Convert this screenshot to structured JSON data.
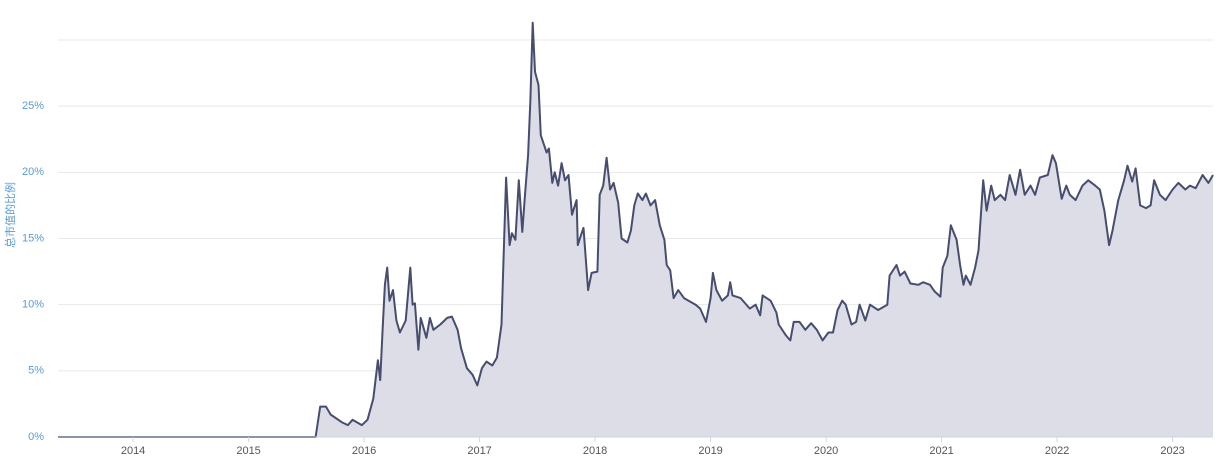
{
  "chart_data": {
    "type": "area",
    "y_label": "总市值的比例",
    "x": [
      2013.35,
      2015.58,
      2015.62,
      2015.67,
      2015.71,
      2015.81,
      2015.86,
      2015.9,
      2015.98,
      2016.03,
      2016.08,
      2016.12,
      2016.14,
      2016.16,
      2016.18,
      2016.2,
      2016.22,
      2016.25,
      2016.28,
      2016.31,
      2016.36,
      2016.4,
      2016.42,
      2016.44,
      2016.47,
      2016.49,
      2016.54,
      2016.57,
      2016.6,
      2016.66,
      2016.72,
      2016.76,
      2016.81,
      2016.84,
      2016.89,
      2016.94,
      2016.98,
      2017.02,
      2017.06,
      2017.11,
      2017.15,
      2017.19,
      2017.21,
      2017.23,
      2017.26,
      2017.28,
      2017.31,
      2017.34,
      2017.37,
      2017.39,
      2017.42,
      2017.44,
      2017.46,
      2017.48,
      2017.51,
      2017.53,
      2017.58,
      2017.6,
      2017.63,
      2017.65,
      2017.68,
      2017.71,
      2017.74,
      2017.77,
      2017.8,
      2017.84,
      2017.85,
      2017.88,
      2017.9,
      2017.94,
      2017.97,
      2018.02,
      2018.04,
      2018.07,
      2018.1,
      2018.13,
      2018.16,
      2018.2,
      2018.23,
      2018.28,
      2018.31,
      2018.34,
      2018.37,
      2018.41,
      2018.44,
      2018.48,
      2018.52,
      2018.56,
      2018.6,
      2018.62,
      2018.65,
      2018.68,
      2018.72,
      2018.77,
      2018.81,
      2018.87,
      2018.91,
      2018.96,
      2019.0,
      2019.02,
      2019.05,
      2019.1,
      2019.15,
      2019.17,
      2019.19,
      2019.26,
      2019.34,
      2019.39,
      2019.43,
      2019.45,
      2019.52,
      2019.57,
      2019.59,
      2019.65,
      2019.69,
      2019.72,
      2019.77,
      2019.82,
      2019.87,
      2019.92,
      2019.97,
      2020.02,
      2020.06,
      2020.1,
      2020.14,
      2020.17,
      2020.22,
      2020.26,
      2020.29,
      2020.34,
      2020.38,
      2020.45,
      2020.53,
      2020.55,
      2020.61,
      2020.64,
      2020.68,
      2020.73,
      2020.8,
      2020.84,
      2020.9,
      2020.94,
      2020.99,
      2021.01,
      2021.05,
      2021.08,
      2021.13,
      2021.16,
      2021.19,
      2021.21,
      2021.25,
      2021.29,
      2021.32,
      2021.36,
      2021.39,
      2021.43,
      2021.46,
      2021.51,
      2021.55,
      2021.59,
      2021.64,
      2021.68,
      2021.72,
      2021.77,
      2021.81,
      2021.85,
      2021.92,
      2021.96,
      2021.99,
      2022.04,
      2022.08,
      2022.11,
      2022.16,
      2022.22,
      2022.27,
      2022.33,
      2022.37,
      2022.41,
      2022.45,
      2022.48,
      2022.53,
      2022.58,
      2022.61,
      2022.65,
      2022.68,
      2022.72,
      2022.77,
      2022.81,
      2022.84,
      2022.89,
      2022.94,
      2023.0,
      2023.05,
      2023.11,
      2023.15,
      2023.2,
      2023.26,
      2023.31,
      2023.35
    ],
    "series": [
      {
        "color": "#474d6e",
        "fill": "#dcdde6",
        "values": [
          0,
          0,
          2.3,
          2.3,
          1.7,
          1.1,
          0.9,
          1.3,
          0.9,
          1.3,
          2.9,
          5.8,
          4.3,
          8.1,
          11.5,
          12.8,
          10.3,
          11.1,
          8.8,
          7.9,
          8.8,
          12.8,
          10.0,
          10.1,
          6.6,
          9.0,
          7.5,
          9.0,
          8.1,
          8.5,
          9.0,
          9.1,
          8.1,
          6.7,
          5.2,
          4.7,
          3.9,
          5.2,
          5.7,
          5.4,
          6.0,
          8.5,
          14.1,
          19.6,
          14.5,
          15.4,
          14.9,
          19.4,
          15.5,
          17.9,
          21.3,
          25.5,
          31.3,
          27.6,
          26.6,
          22.8,
          21.5,
          21.8,
          19.2,
          20.0,
          19.0,
          20.7,
          19.4,
          19.8,
          16.8,
          17.9,
          14.5,
          15.3,
          15.8,
          11.1,
          12.4,
          12.5,
          18.3,
          19.0,
          21.1,
          18.7,
          19.2,
          17.7,
          15.0,
          14.7,
          15.6,
          17.5,
          18.4,
          17.9,
          18.4,
          17.5,
          17.9,
          16.0,
          14.9,
          13.0,
          12.6,
          10.5,
          11.1,
          10.5,
          10.3,
          10.0,
          9.7,
          8.7,
          10.5,
          12.4,
          11.1,
          10.3,
          10.7,
          11.7,
          10.7,
          10.5,
          9.7,
          10.0,
          9.2,
          10.7,
          10.3,
          9.4,
          8.5,
          7.7,
          7.3,
          8.7,
          8.7,
          8.1,
          8.6,
          8.1,
          7.3,
          7.9,
          7.9,
          9.6,
          10.3,
          10.0,
          8.5,
          8.7,
          10.0,
          8.8,
          10.0,
          9.6,
          10.0,
          12.2,
          13.0,
          12.2,
          12.5,
          11.6,
          11.5,
          11.7,
          11.5,
          11.0,
          10.6,
          12.8,
          13.7,
          16.0,
          14.9,
          13.0,
          11.5,
          12.2,
          11.5,
          12.8,
          14.1,
          19.4,
          17.1,
          19.0,
          17.9,
          18.3,
          17.9,
          19.8,
          18.3,
          20.2,
          18.3,
          19.0,
          18.3,
          19.6,
          19.8,
          21.3,
          20.7,
          18.0,
          19.0,
          18.3,
          17.9,
          19.0,
          19.4,
          19.0,
          18.7,
          17.1,
          14.5,
          15.6,
          17.9,
          19.4,
          20.5,
          19.3,
          20.3,
          17.5,
          17.3,
          17.5,
          19.4,
          18.3,
          17.9,
          18.7,
          19.2,
          18.7,
          19.0,
          18.8,
          19.8,
          19.2,
          19.8
        ]
      }
    ],
    "xlim": [
      2013.35,
      2023.35
    ],
    "xticks": [
      2014,
      2015,
      2016,
      2017,
      2018,
      2019,
      2020,
      2021,
      2022,
      2023
    ],
    "ylim": [
      0,
      30
    ],
    "yticks": [
      {
        "value": 0,
        "label": "0%"
      },
      {
        "value": 5,
        "label": "5%"
      },
      {
        "value": 10,
        "label": "10%"
      },
      {
        "value": 15,
        "label": "15%"
      },
      {
        "value": 20,
        "label": "20%"
      },
      {
        "value": 25,
        "label": "25%"
      }
    ],
    "grid": true
  }
}
